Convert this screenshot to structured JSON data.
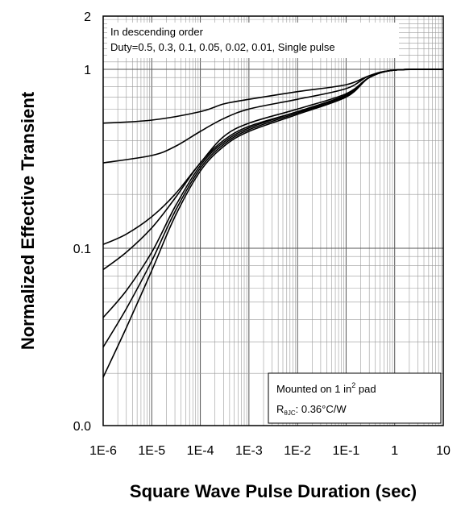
{
  "chart_data": {
    "type": "line",
    "title": "",
    "xlabel": "Square Wave Pulse Duration (sec)",
    "ylabel": "Normalized Effective Transient",
    "x_scale": "log",
    "y_scale": "log",
    "xlim": [
      1e-06,
      10
    ],
    "ylim": [
      0.01,
      2
    ],
    "grid": true,
    "x_ticks": [
      {
        "value": 1e-06,
        "label": "1E-6"
      },
      {
        "value": 1e-05,
        "label": "1E-5"
      },
      {
        "value": 0.0001,
        "label": "1E-4"
      },
      {
        "value": 0.001,
        "label": "1E-3"
      },
      {
        "value": 0.01,
        "label": "1E-2"
      },
      {
        "value": 0.1,
        "label": "1E-1"
      },
      {
        "value": 1,
        "label": "1"
      },
      {
        "value": 10,
        "label": "10"
      }
    ],
    "y_ticks": [
      {
        "value": 0.01,
        "label": "0.0"
      },
      {
        "value": 0.1,
        "label": "0.1"
      },
      {
        "value": 1,
        "label": "1"
      },
      {
        "value": 2,
        "label": "2"
      }
    ],
    "annotations": {
      "order_line1": "In descending order",
      "order_line2": "Duty=0.5, 0.3, 0.1, 0.05, 0.02, 0.01, Single pulse",
      "mount_prefix": "Mounted on 1 in",
      "mount_sup": "2",
      "mount_suffix": " pad",
      "r_main": "R",
      "r_sub": "θJC",
      "r_value": ": 0.36°C/W"
    },
    "series": [
      {
        "x": [
          1e-06,
          1e-05,
          0.0001,
          0.0003,
          0.001,
          0.01,
          0.1,
          0.3,
          1,
          10
        ],
        "values": [
          0.5,
          0.52,
          0.58,
          0.64,
          0.68,
          0.75,
          0.82,
          0.92,
          0.99,
          1.0
        ]
      },
      {
        "x": [
          1e-06,
          1e-05,
          3e-05,
          0.0001,
          0.0003,
          0.001,
          0.01,
          0.1,
          0.3,
          1,
          10
        ],
        "values": [
          0.3,
          0.33,
          0.37,
          0.45,
          0.53,
          0.6,
          0.68,
          0.78,
          0.92,
          0.99,
          1.0
        ]
      },
      {
        "x": [
          1e-06,
          3e-06,
          1e-05,
          3e-05,
          0.0001,
          0.0003,
          0.001,
          0.01,
          0.1,
          0.3,
          1,
          10
        ],
        "values": [
          0.105,
          0.12,
          0.15,
          0.2,
          0.3,
          0.42,
          0.5,
          0.6,
          0.73,
          0.9,
          0.99,
          1.0
        ]
      },
      {
        "x": [
          1e-06,
          3e-06,
          1e-05,
          3e-05,
          0.0001,
          0.0003,
          0.001,
          0.01,
          0.1,
          0.3,
          1,
          10
        ],
        "values": [
          0.076,
          0.095,
          0.13,
          0.19,
          0.3,
          0.4,
          0.48,
          0.58,
          0.72,
          0.9,
          0.99,
          1.0
        ]
      },
      {
        "x": [
          1e-06,
          3e-06,
          1e-05,
          3e-05,
          0.0001,
          0.0003,
          0.001,
          0.01,
          0.1,
          0.3,
          1,
          10
        ],
        "values": [
          0.041,
          0.058,
          0.095,
          0.17,
          0.29,
          0.39,
          0.47,
          0.58,
          0.71,
          0.9,
          0.99,
          1.0
        ]
      },
      {
        "x": [
          1e-06,
          3e-06,
          1e-05,
          3e-05,
          0.0001,
          0.0003,
          0.001,
          0.01,
          0.1,
          0.3,
          1,
          10
        ],
        "values": [
          0.028,
          0.046,
          0.085,
          0.16,
          0.28,
          0.38,
          0.46,
          0.57,
          0.7,
          0.9,
          0.99,
          1.0
        ]
      },
      {
        "x": [
          1e-06,
          3e-06,
          1e-05,
          3e-05,
          0.0001,
          0.0003,
          0.001,
          0.01,
          0.1,
          0.3,
          1,
          10
        ],
        "values": [
          0.019,
          0.036,
          0.075,
          0.15,
          0.27,
          0.37,
          0.45,
          0.56,
          0.7,
          0.9,
          0.99,
          1.0
        ]
      }
    ]
  }
}
